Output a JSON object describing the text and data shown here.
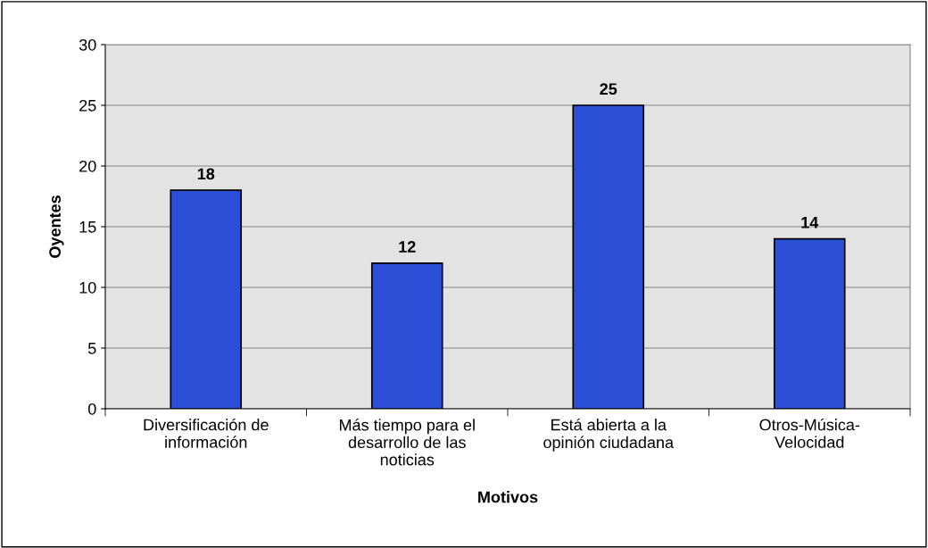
{
  "chart_data": {
    "type": "bar",
    "xlabel": "Motivos",
    "ylabel": "Oyentes",
    "categories": [
      "Diversificación de\ninformación",
      "Más tiempo para el\ndesarrollo de las\nnoticias",
      "Está abierta a la\nopinión ciudadana",
      "Otros-Música-\nVelocidad"
    ],
    "values": [
      18,
      12,
      25,
      14
    ],
    "color": "#2b4fd6",
    "ylim": [
      0,
      30
    ],
    "yticks": [
      0,
      5,
      10,
      15,
      20,
      25,
      30
    ],
    "grid": "y",
    "data_labels": true
  }
}
